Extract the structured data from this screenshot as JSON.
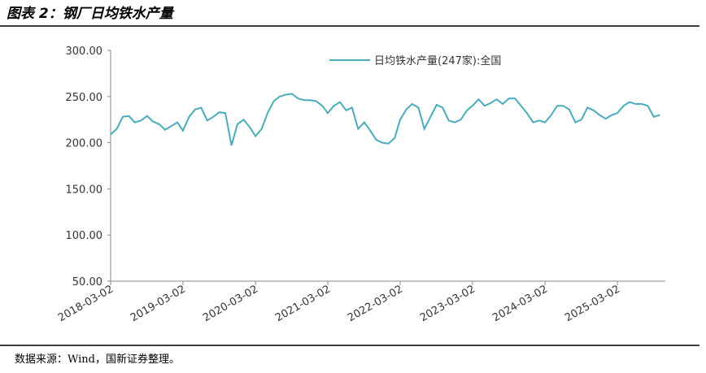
{
  "chart_data": {
    "type": "line",
    "title": "图表 2：钢厂日均铁水产量",
    "source": "数据来源：Wind，国新证券整理。",
    "x": [
      "2018-03-02",
      "2018-04-02",
      "2018-05-02",
      "2018-06-02",
      "2018-07-02",
      "2018-08-02",
      "2018-09-02",
      "2018-10-02",
      "2018-11-02",
      "2018-12-02",
      "2019-01-02",
      "2019-02-02",
      "2019-03-02",
      "2019-04-02",
      "2019-05-02",
      "2019-06-02",
      "2019-07-02",
      "2019-08-02",
      "2019-09-02",
      "2019-10-02",
      "2019-11-02",
      "2019-12-02",
      "2020-01-02",
      "2020-02-02",
      "2020-03-02",
      "2020-04-02",
      "2020-05-02",
      "2020-06-02",
      "2020-07-02",
      "2020-08-02",
      "2020-09-02",
      "2020-10-02",
      "2020-11-02",
      "2020-12-02",
      "2021-01-02",
      "2021-02-02",
      "2021-03-02",
      "2021-04-02",
      "2021-05-02",
      "2021-06-02",
      "2021-07-02",
      "2021-08-02",
      "2021-09-02",
      "2021-10-02",
      "2021-11-02",
      "2021-12-02",
      "2022-01-02",
      "2022-02-02",
      "2022-03-02",
      "2022-04-02",
      "2022-05-02",
      "2022-06-02",
      "2022-07-02",
      "2022-08-02",
      "2022-09-02",
      "2022-10-02",
      "2022-11-02",
      "2022-12-02",
      "2023-01-02",
      "2023-02-02",
      "2023-03-02",
      "2023-04-02",
      "2023-05-02",
      "2023-06-02",
      "2023-07-02",
      "2023-08-02",
      "2023-09-02",
      "2023-10-02",
      "2023-11-02",
      "2023-12-02",
      "2024-01-02",
      "2024-02-02",
      "2024-03-02",
      "2024-04-02",
      "2024-05-02",
      "2024-06-02",
      "2024-07-02",
      "2024-08-02",
      "2024-09-02",
      "2024-10-02",
      "2024-11-02",
      "2024-12-02",
      "2025-01-02",
      "2025-02-02",
      "2025-03-02",
      "2025-04-02",
      "2025-05-02",
      "2025-06-02",
      "2025-07-02",
      "2025-08-02",
      "2025-09-02",
      "2025-10-02"
    ],
    "series": [
      {
        "name": "日均铁水产量(247家):全国",
        "color": "#4aabbc",
        "values": [
          209,
          215,
          228,
          229,
          222,
          224,
          229,
          223,
          220,
          214,
          218,
          222,
          213,
          228,
          236,
          238,
          224,
          228,
          233,
          232,
          197,
          220,
          225,
          217,
          207,
          215,
          232,
          245,
          250,
          252,
          253,
          248,
          246,
          246,
          245,
          240,
          232,
          240,
          244,
          235,
          238,
          215,
          222,
          213,
          203,
          200,
          199,
          205,
          225,
          236,
          242,
          238,
          215,
          228,
          241,
          238,
          224,
          222,
          225,
          235,
          240,
          247,
          240,
          243,
          247,
          242,
          248,
          248,
          240,
          232,
          222,
          224,
          222,
          230,
          240,
          240,
          236,
          222,
          225,
          238,
          235,
          230,
          226,
          230,
          232,
          240,
          244,
          242,
          242,
          240,
          228,
          230
        ]
      }
    ],
    "xlim": [
      "2018-03-02",
      "2025-10-30"
    ],
    "xticks": [
      "2018-03-02",
      "2019-03-02",
      "2020-03-02",
      "2021-03-02",
      "2022-03-02",
      "2023-03-02",
      "2024-03-02",
      "2025-03-02"
    ],
    "ylim": [
      50,
      300
    ],
    "yticks": [
      {
        "value": 50,
        "label": "50.00"
      },
      {
        "value": 100,
        "label": "100.00"
      },
      {
        "value": 150,
        "label": "150.00"
      },
      {
        "value": 200,
        "label": "200.00"
      },
      {
        "value": 250,
        "label": "250.00"
      },
      {
        "value": 300,
        "label": "300.00"
      }
    ]
  }
}
